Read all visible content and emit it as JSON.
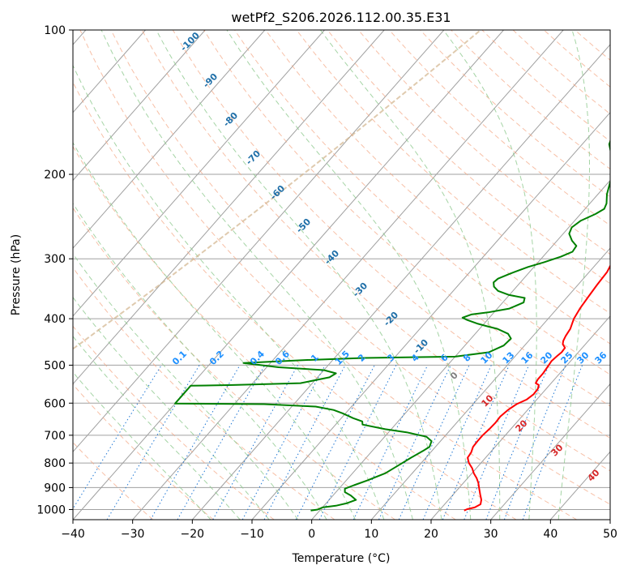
{
  "chart_data": {
    "type": "line",
    "title": "wetPf2_S206.2026.112.00.35.E31",
    "xlabel": "Temperature (°C)",
    "ylabel": "Pressure (hPa)",
    "xlim": [
      -40,
      50
    ],
    "ylim": [
      1050,
      100
    ],
    "y_scale": "log",
    "x_ticks": [
      -40,
      -30,
      -20,
      -10,
      0,
      10,
      20,
      30,
      40,
      50
    ],
    "y_ticks": [
      100,
      200,
      300,
      400,
      500,
      600,
      700,
      800,
      900,
      1000
    ],
    "grid": true,
    "series": [
      {
        "role": "temperature",
        "color": "#ff0000",
        "points": [
          [
            24.2,
            1005
          ],
          [
            24.5,
            998
          ],
          [
            25.5,
            990
          ],
          [
            26.0,
            975
          ],
          [
            25.5,
            955
          ],
          [
            24.5,
            930
          ],
          [
            23.5,
            905
          ],
          [
            22.5,
            880
          ],
          [
            21.5,
            860
          ],
          [
            20.3,
            840
          ],
          [
            19.3,
            820
          ],
          [
            18.0,
            800
          ],
          [
            17.0,
            780
          ],
          [
            16.8,
            760
          ],
          [
            16.3,
            740
          ],
          [
            16.2,
            720
          ],
          [
            16.2,
            700
          ],
          [
            16.4,
            680
          ],
          [
            16.5,
            660
          ],
          [
            16.4,
            640
          ],
          [
            16.7,
            620
          ],
          [
            17.3,
            603
          ],
          [
            18.3,
            590
          ],
          [
            18.7,
            575
          ],
          [
            18.6,
            560
          ],
          [
            18.2,
            550
          ],
          [
            17.4,
            545
          ],
          [
            17.2,
            535
          ],
          [
            17.2,
            520
          ],
          [
            17.0,
            505
          ],
          [
            16.8,
            490
          ],
          [
            17.0,
            478
          ],
          [
            17.2,
            470
          ],
          [
            17.1,
            460
          ],
          [
            16.2,
            452
          ],
          [
            15.8,
            445
          ],
          [
            15.5,
            435
          ],
          [
            15.2,
            420
          ],
          [
            14.3,
            400
          ],
          [
            13.8,
            380
          ],
          [
            13.5,
            360
          ],
          [
            13.2,
            340
          ],
          [
            13.0,
            320
          ],
          [
            12.2,
            300
          ],
          [
            11.5,
            285
          ],
          [
            10.5,
            265
          ],
          [
            9.0,
            250
          ],
          [
            7.2,
            240
          ],
          [
            5.0,
            225
          ],
          [
            3.0,
            210
          ],
          [
            2.0,
            195
          ],
          [
            1.6,
            182
          ],
          [
            1.9,
            172
          ],
          [
            2.2,
            162
          ],
          [
            2.3,
            155
          ],
          [
            2.4,
            150
          ],
          [
            2.5,
            145
          ],
          [
            2.6,
            140
          ],
          [
            3.0,
            134
          ],
          [
            4.0,
            128
          ],
          [
            5.0,
            122
          ],
          [
            5.8,
            117
          ],
          [
            6.3,
            112
          ],
          [
            7.5,
            106
          ],
          [
            9.0,
            100
          ]
        ]
      },
      {
        "role": "dewpoint",
        "color": "#008000",
        "points": [
          [
            -1.5,
            1005
          ],
          [
            -0.5,
            1000
          ],
          [
            0,
            990
          ],
          [
            2.0,
            982
          ],
          [
            3.5,
            970
          ],
          [
            4.5,
            955
          ],
          [
            3.0,
            935
          ],
          [
            1.5,
            920
          ],
          [
            1.0,
            905
          ],
          [
            2.0,
            890
          ],
          [
            3.5,
            870
          ],
          [
            5.5,
            840
          ],
          [
            6.5,
            810
          ],
          [
            7.5,
            780
          ],
          [
            8.5,
            755
          ],
          [
            9.0,
            740
          ],
          [
            8.5,
            720
          ],
          [
            7.0,
            705
          ],
          [
            3.0,
            690
          ],
          [
            -1.0,
            680
          ],
          [
            -5.5,
            665
          ],
          [
            -6.0,
            655
          ],
          [
            -8.0,
            645
          ],
          [
            -10.5,
            630
          ],
          [
            -12.5,
            620
          ],
          [
            -16.0,
            610
          ],
          [
            -25.0,
            603
          ],
          [
            -40.0,
            601
          ],
          [
            -40.0,
            552
          ],
          [
            -33.0,
            550
          ],
          [
            -22.0,
            545
          ],
          [
            -18.0,
            530
          ],
          [
            -17.5,
            520
          ],
          [
            -20.0,
            512
          ],
          [
            -28.0,
            505
          ],
          [
            -34.5,
            495
          ],
          [
            -25.0,
            488
          ],
          [
            -15.0,
            483
          ],
          [
            0,
            480
          ],
          [
            5.0,
            470
          ],
          [
            6.5,
            455
          ],
          [
            6.7,
            440
          ],
          [
            5.5,
            430
          ],
          [
            3.0,
            420
          ],
          [
            1.0,
            415
          ],
          [
            -1.0,
            410
          ],
          [
            -3.5,
            402
          ],
          [
            -4.5,
            398
          ],
          [
            -3.5,
            392
          ],
          [
            -1.0,
            388
          ],
          [
            2.0,
            381
          ],
          [
            3.5,
            370
          ],
          [
            3.0,
            362
          ],
          [
            0,
            357
          ],
          [
            -2.5,
            350
          ],
          [
            -3.8,
            343
          ],
          [
            -4.5,
            336
          ],
          [
            -4.3,
            330
          ],
          [
            -3.0,
            322
          ],
          [
            -1.0,
            312
          ],
          [
            1.0,
            305
          ],
          [
            3.0,
            297
          ],
          [
            4.2,
            290
          ],
          [
            4.0,
            282
          ],
          [
            2.5,
            275
          ],
          [
            1.0,
            266
          ],
          [
            0.5,
            258
          ],
          [
            1.0,
            250
          ],
          [
            2.5,
            242
          ],
          [
            3.2,
            236
          ],
          [
            2.8,
            230
          ],
          [
            1.5,
            220
          ],
          [
            0.5,
            210
          ],
          [
            -0.5,
            200
          ],
          [
            -2.0,
            190
          ],
          [
            -4.0,
            180
          ],
          [
            -5.5,
            173
          ],
          [
            -6.0,
            168
          ],
          [
            -6.0,
            160
          ],
          [
            -5.5,
            152
          ],
          [
            -4.5,
            145
          ],
          [
            -3.0,
            138
          ],
          [
            -2.2,
            130
          ],
          [
            -2.0,
            120
          ],
          [
            -2.0,
            110
          ],
          [
            -2.2,
            100
          ]
        ]
      }
    ],
    "mixing_ratio_labels": [
      "0.1",
      "0.2",
      "0.4",
      "0.6",
      "1",
      "1.5",
      "2",
      "3",
      "4",
      "6",
      "8",
      "10",
      "13",
      "16",
      "20",
      "25",
      "30",
      "36"
    ],
    "dry_adiabat_labels": [
      "-100",
      "-90",
      "-80",
      "-70",
      "-60",
      "-50",
      "-40",
      "-30",
      "-20",
      "-10"
    ],
    "moist_adiabat_labels": [
      "0",
      "10",
      "20",
      "30",
      "40"
    ],
    "colors": {
      "dry_adiabats": "#f4a582",
      "moist_adiabats": "#8fc98f",
      "mixing_ratio": "#1f77d4",
      "dry_adiabat_label": "#1f6fa8",
      "mixing_ratio_label": "#1e90ff",
      "moist_adiabat_label": "#d62728",
      "zero_label": "#808080",
      "isotherms": "#a0a0a0",
      "saturation": "#d2b48c"
    }
  }
}
